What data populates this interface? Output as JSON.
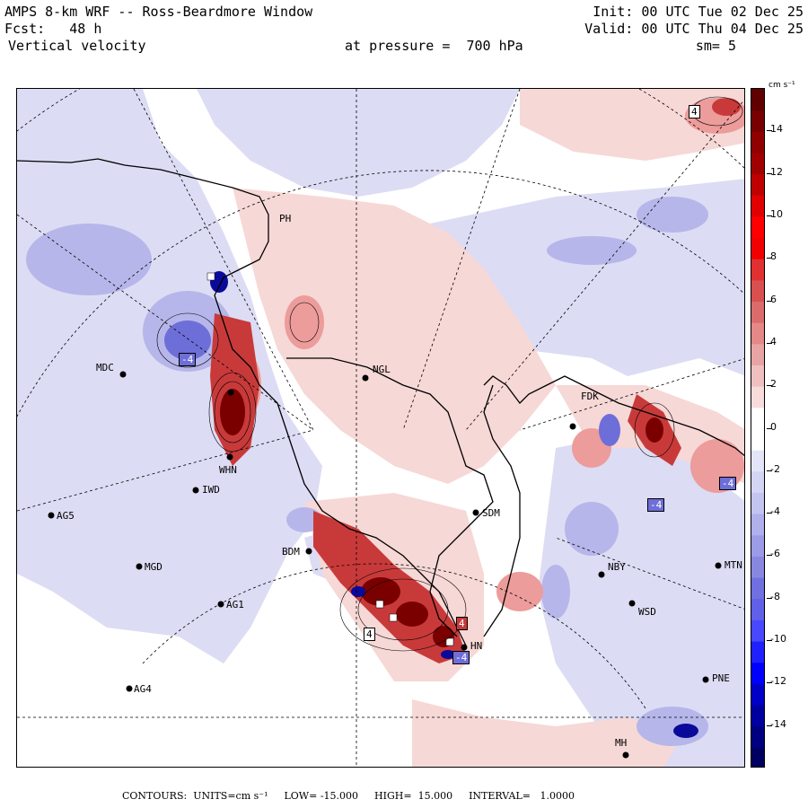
{
  "header": {
    "line1_left": "AMPS 8-km WRF -- Ross-Beardmore Window",
    "line2_left": "Fcst:   48 h",
    "line3_left": "Vertical velocity",
    "line1_right": "Init: 00 UTC Tue 02 Dec 25",
    "line2_right": "Valid: 00 UTC Thu 04 Dec 25",
    "line3_mid": "at pressure =  700 hPa",
    "line3_right": "sm= 5"
  },
  "colorbar": {
    "units": "cm s⁻¹",
    "labels": [
      {
        "value": 14,
        "text": "14"
      },
      {
        "value": 12,
        "text": "12"
      },
      {
        "value": 10,
        "text": "10"
      },
      {
        "value": 8,
        "text": "8"
      },
      {
        "value": 6,
        "text": "6"
      },
      {
        "value": 4,
        "text": "4"
      },
      {
        "value": 2,
        "text": "2"
      },
      {
        "value": 0,
        "text": "0"
      },
      {
        "value": -2,
        "text": "-2"
      },
      {
        "value": -4,
        "text": "-4"
      },
      {
        "value": -6,
        "text": "-6"
      },
      {
        "value": -8,
        "text": "-8"
      },
      {
        "value": -10,
        "text": "-10"
      },
      {
        "value": -12,
        "text": "-12"
      },
      {
        "value": -14,
        "text": "-14"
      }
    ],
    "range": [
      -16,
      16
    ]
  },
  "colors": {
    "pos_light": "#f6d8d6",
    "pos_mid": "#ec9c9a",
    "pos_strong": "#c83a3a",
    "pos_dark": "#7a0000",
    "neg_light": "#dcdcf4",
    "neg_mid": "#b6b6ea",
    "neg_strong": "#6e6ed8",
    "neg_dark": "#0a0a9a"
  },
  "stations": [
    {
      "id": "station-ngl",
      "label": "NGL"
    },
    {
      "id": "station-mdc",
      "label": "MDC"
    },
    {
      "id": "station-iwd",
      "label": "IWD"
    },
    {
      "id": "station-ag5",
      "label": "AG5"
    },
    {
      "id": "station-mgd",
      "label": "MGD"
    },
    {
      "id": "station-ag1",
      "label": "AG1"
    },
    {
      "id": "station-ag4",
      "label": "AG4"
    },
    {
      "id": "station-bdm",
      "label": "BDM"
    },
    {
      "id": "station-sdm",
      "label": "SDM"
    },
    {
      "id": "station-nby",
      "label": "NBY"
    },
    {
      "id": "station-wsd",
      "label": "WSD"
    },
    {
      "id": "station-pne",
      "label": "PNE"
    },
    {
      "id": "station-mtn",
      "label": "MTN"
    },
    {
      "id": "station-fdk",
      "label": "FDK"
    },
    {
      "id": "station-whn",
      "label": "WHN"
    },
    {
      "id": "station-ph",
      "label": "PH"
    },
    {
      "id": "station-hn",
      "label": "HN"
    },
    {
      "id": "station-mh",
      "label": "MH"
    }
  ],
  "extrema_labels": [
    "4",
    "-4",
    "-4",
    "-4",
    "4",
    "4",
    "-4"
  ],
  "footer": {
    "contours": "CONTOURS:  UNITS=cm s⁻¹",
    "low": "LOW= -15.000",
    "high": "HIGH=  15.000",
    "interval": "INTERVAL=   1.0000"
  }
}
